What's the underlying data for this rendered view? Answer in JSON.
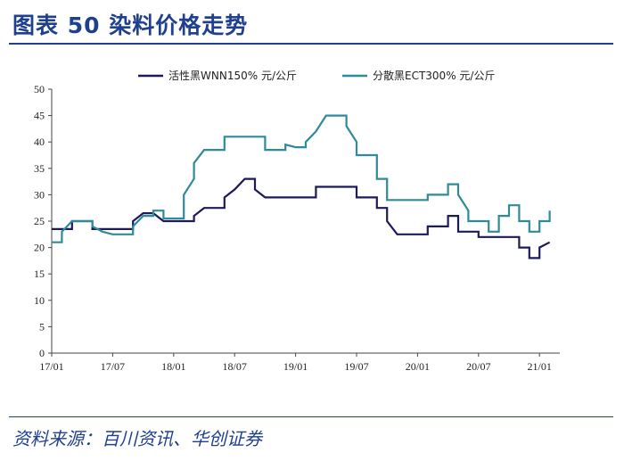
{
  "header": {
    "title": "图表 50    染料价格走势"
  },
  "footer": {
    "source": "资料来源：百川资讯、华创证券"
  },
  "chart_data": {
    "type": "line",
    "title": "",
    "xlabel": "",
    "ylabel": "",
    "ylim": [
      0,
      50
    ],
    "yticks": [
      0,
      5,
      10,
      15,
      20,
      25,
      30,
      35,
      40,
      45,
      50
    ],
    "xlim": [
      "2017-01",
      "2021-03"
    ],
    "xticks": [
      "17/01",
      "17/07",
      "18/01",
      "18/07",
      "19/01",
      "19/07",
      "20/01",
      "20/07",
      "21/01"
    ],
    "grid": false,
    "legend": "top",
    "series": [
      {
        "name": "活性黑WNN150% 元/公斤",
        "color": "#1d1a5c",
        "points": [
          [
            "2017-01",
            23.5
          ],
          [
            "2017-03",
            23.5
          ],
          [
            "2017-03",
            25
          ],
          [
            "2017-05",
            25
          ],
          [
            "2017-05",
            23.5
          ],
          [
            "2017-09",
            23.5
          ],
          [
            "2017-09",
            25
          ],
          [
            "2017-10",
            26.5
          ],
          [
            "2017-11",
            26.5
          ],
          [
            "2017-12",
            25
          ],
          [
            "2018-03",
            25
          ],
          [
            "2018-03",
            26
          ],
          [
            "2018-04",
            27.5
          ],
          [
            "2018-06",
            27.5
          ],
          [
            "2018-06",
            29.5
          ],
          [
            "2018-07",
            31
          ],
          [
            "2018-08",
            33
          ],
          [
            "2018-09",
            33
          ],
          [
            "2018-09",
            31
          ],
          [
            "2018-10",
            29.5
          ],
          [
            "2019-03",
            29.5
          ],
          [
            "2019-03",
            31.5
          ],
          [
            "2019-07",
            31.5
          ],
          [
            "2019-07",
            29.5
          ],
          [
            "2019-09",
            29.5
          ],
          [
            "2019-09",
            27.5
          ],
          [
            "2019-10",
            27.5
          ],
          [
            "2019-10",
            25
          ],
          [
            "2019-11",
            22.5
          ],
          [
            "2020-02",
            22.5
          ],
          [
            "2020-02",
            24
          ],
          [
            "2020-04",
            24
          ],
          [
            "2020-04",
            26
          ],
          [
            "2020-05",
            26
          ],
          [
            "2020-05",
            23
          ],
          [
            "2020-07",
            23
          ],
          [
            "2020-07",
            22
          ],
          [
            "2020-11",
            22
          ],
          [
            "2020-11",
            20
          ],
          [
            "2020-12",
            20
          ],
          [
            "2020-12",
            18
          ],
          [
            "2021-01",
            18
          ],
          [
            "2021-01",
            20
          ],
          [
            "2021-02",
            21
          ]
        ]
      },
      {
        "name": "分散黑ECT300% 元/公斤",
        "color": "#2e8b9a",
        "points": [
          [
            "2017-01",
            21
          ],
          [
            "2017-02",
            21
          ],
          [
            "2017-02",
            23
          ],
          [
            "2017-03",
            25
          ],
          [
            "2017-05",
            25
          ],
          [
            "2017-05",
            24
          ],
          [
            "2017-06",
            23
          ],
          [
            "2017-07",
            22.5
          ],
          [
            "2017-09",
            22.5
          ],
          [
            "2017-09",
            24
          ],
          [
            "2017-10",
            26
          ],
          [
            "2017-11",
            26
          ],
          [
            "2017-11",
            27
          ],
          [
            "2017-12",
            27
          ],
          [
            "2017-12",
            25.5
          ],
          [
            "2018-02",
            25.5
          ],
          [
            "2018-02",
            30
          ],
          [
            "2018-03",
            33
          ],
          [
            "2018-03",
            36
          ],
          [
            "2018-04",
            38.5
          ],
          [
            "2018-06",
            38.5
          ],
          [
            "2018-06",
            41
          ],
          [
            "2018-10",
            41
          ],
          [
            "2018-10",
            38.5
          ],
          [
            "2018-12",
            38.5
          ],
          [
            "2018-12",
            39.5
          ],
          [
            "2019-01",
            39
          ],
          [
            "2019-02",
            39
          ],
          [
            "2019-02",
            40
          ],
          [
            "2019-03",
            42
          ],
          [
            "2019-04",
            45
          ],
          [
            "2019-06",
            45
          ],
          [
            "2019-06",
            43
          ],
          [
            "2019-07",
            40
          ],
          [
            "2019-07",
            37.5
          ],
          [
            "2019-09",
            37.5
          ],
          [
            "2019-09",
            33
          ],
          [
            "2019-10",
            33
          ],
          [
            "2019-10",
            29
          ],
          [
            "2020-02",
            29
          ],
          [
            "2020-02",
            30
          ],
          [
            "2020-04",
            30
          ],
          [
            "2020-04",
            32
          ],
          [
            "2020-05",
            32
          ],
          [
            "2020-05",
            30
          ],
          [
            "2020-06",
            27
          ],
          [
            "2020-06",
            25
          ],
          [
            "2020-08",
            25
          ],
          [
            "2020-08",
            23
          ],
          [
            "2020-09",
            23
          ],
          [
            "2020-09",
            26
          ],
          [
            "2020-10",
            26
          ],
          [
            "2020-10",
            28
          ],
          [
            "2020-11",
            28
          ],
          [
            "2020-11",
            25
          ],
          [
            "2020-12",
            25
          ],
          [
            "2020-12",
            23
          ],
          [
            "2021-01",
            23
          ],
          [
            "2021-01",
            25
          ],
          [
            "2021-02",
            25
          ],
          [
            "2021-02",
            27
          ]
        ]
      }
    ]
  }
}
